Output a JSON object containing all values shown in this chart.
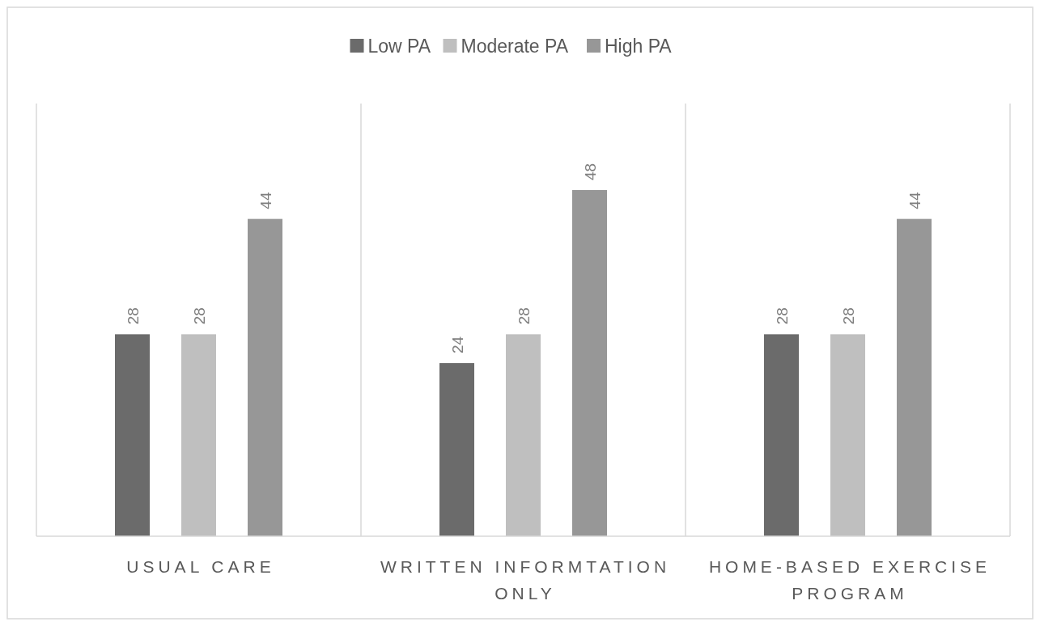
{
  "chart_data": {
    "type": "bar",
    "categories": [
      "USUAL CARE",
      "WRITTEN INFORMTATION ONLY",
      "HOME-BASED EXERCISE PROGRAM"
    ],
    "series": [
      {
        "name": "Low PA",
        "color": "#6b6b6b",
        "values": [
          28,
          24,
          28
        ]
      },
      {
        "name": "Moderate PA",
        "color": "#bfbfbf",
        "values": [
          28,
          28,
          28
        ]
      },
      {
        "name": "High PA",
        "color": "#979797",
        "values": [
          44,
          48,
          44
        ]
      }
    ],
    "ylim": [
      0,
      60
    ],
    "data_labels": true,
    "grid": "x",
    "legend": "top"
  }
}
